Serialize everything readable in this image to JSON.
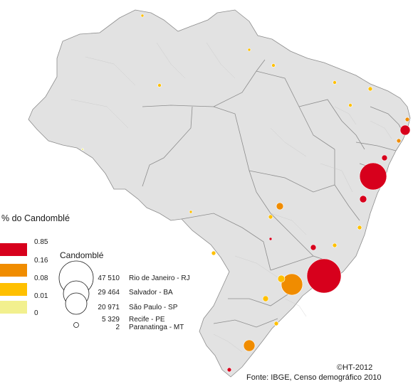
{
  "legend_percent": {
    "title": "% do Candomblé",
    "classes": [
      {
        "label": "0.85",
        "color": "#d7001c"
      },
      {
        "label": "0.16",
        "color": "#f08c00"
      },
      {
        "label": "0.08",
        "color": "#ffc000"
      },
      {
        "label": "0.01",
        "color": "#f2f08e"
      },
      {
        "label": "0",
        "color": "#ffffff"
      }
    ]
  },
  "legend_size": {
    "title": "Candomblé",
    "entries": [
      {
        "value": "47 510",
        "city": "Rio de Janeiro - RJ"
      },
      {
        "value": "29 464",
        "city": "Salvador - BA"
      },
      {
        "value": "20 971",
        "city": "São Paulo - SP"
      },
      {
        "value": "5 329",
        "city": "Recife - PE"
      },
      {
        "value": "2",
        "city": "Paranatinga - MT"
      }
    ]
  },
  "credit": "©HT-2012",
  "source": "Fonte: IBGE, Censo demográfico 2010",
  "colors": {
    "land": "#e2e2e2",
    "state_border": "#8c8c8c",
    "muni_border": "#c8c8c8"
  }
}
